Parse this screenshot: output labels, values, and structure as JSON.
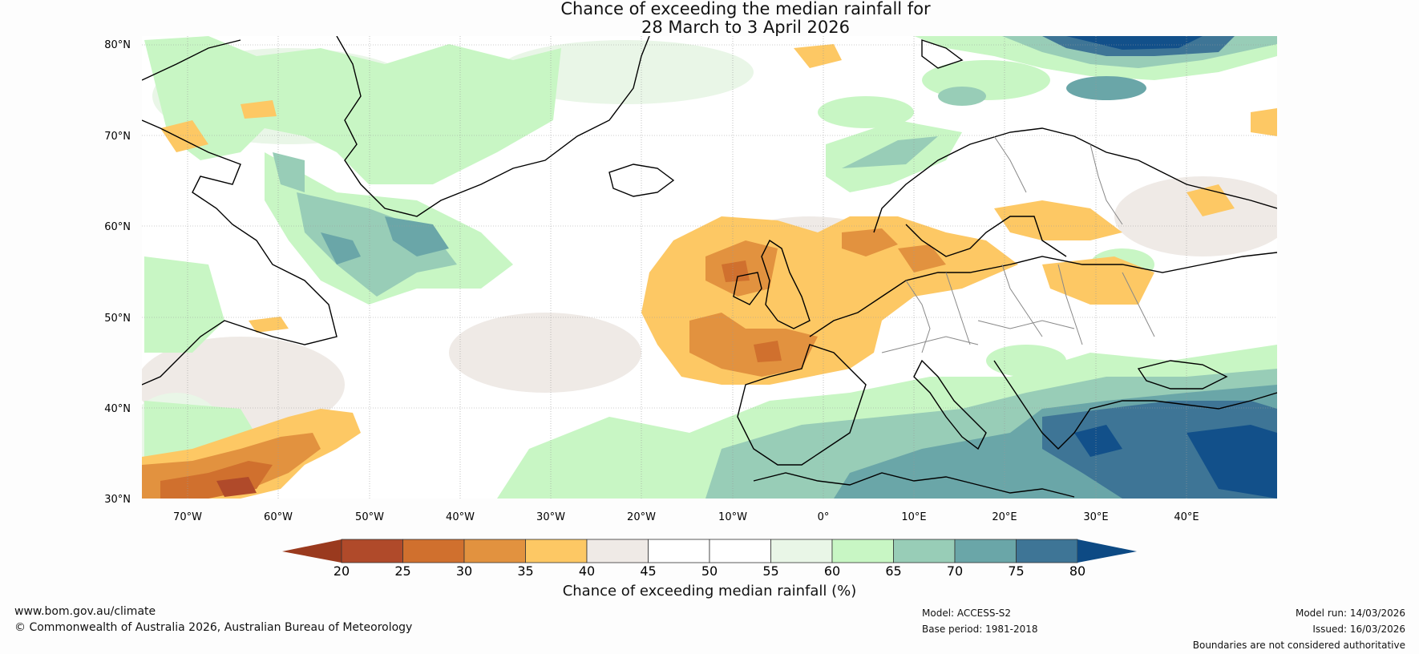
{
  "title_line1": "Chance of exceeding the median rainfall for",
  "title_line2": "28 March to 3 April 2026",
  "map": {
    "lat_labels": [
      "80°N",
      "70°N",
      "60°N",
      "50°N",
      "40°N",
      "30°N"
    ],
    "lon_labels": [
      "70°W",
      "60°W",
      "50°W",
      "40°W",
      "30°W",
      "20°W",
      "10°W",
      "0°",
      "10°E",
      "20°E",
      "30°E",
      "40°E"
    ],
    "extent": {
      "lon_min": -75,
      "lon_max": 50,
      "lat_min": 30,
      "lat_max": 81
    }
  },
  "colorbar": {
    "ticks": [
      "20",
      "25",
      "30",
      "35",
      "40",
      "45",
      "50",
      "55",
      "60",
      "65",
      "70",
      "75",
      "80"
    ],
    "colors": [
      "#b04a2a",
      "#d0702e",
      "#e2923f",
      "#fdc864",
      "#efeae6",
      "#ffffff",
      "#ffffff",
      "#e9f6e7",
      "#c8f6c4",
      "#98cdb7",
      "#6aa6a8",
      "#3e7596",
      "#12508a"
    ],
    "under_color": "#9a3a1e",
    "over_color": "#0d4a84",
    "label": "Chance of exceeding median rainfall (%)"
  },
  "footer": {
    "website": "www.bom.gov.au/climate",
    "copyright": "© Commonwealth of Australia 2026, Australian Bureau of Meteorology",
    "model": "Model: ACCESS-S2",
    "base_period": "Base period: 1981-2018",
    "model_run": "Model run: 14/03/2026",
    "issued": "Issued: 16/03/2026",
    "disclaimer": "Boundaries are not considered authoritative"
  }
}
